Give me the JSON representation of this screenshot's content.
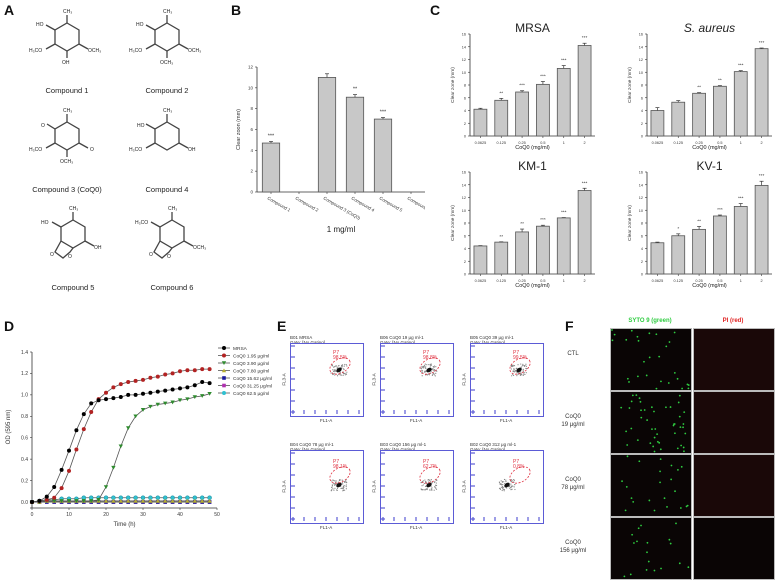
{
  "panels": {
    "A": {
      "label": "A"
    },
    "B": {
      "label": "B"
    },
    "C": {
      "label": "C"
    },
    "D": {
      "label": "D"
    },
    "E": {
      "label": "E"
    },
    "F": {
      "label": "F"
    }
  },
  "compounds": [
    {
      "name": "Compound 1",
      "groups": [
        "CH3",
        "HO",
        "H3CO",
        "OCH3",
        "OH"
      ]
    },
    {
      "name": "Compound 2",
      "groups": [
        "CH3",
        "HO",
        "H3CO",
        "OCH3",
        "OCH3"
      ]
    },
    {
      "name": "Compound 3 (CoQ0)",
      "groups": [
        "CH3",
        "O",
        "H3CO",
        "O",
        "OCH3"
      ]
    },
    {
      "name": "Compound 4",
      "groups": [
        "CH3",
        "HO",
        "H3CO",
        "OH"
      ]
    },
    {
      "name": "Compound 5",
      "groups": [
        "CH3",
        "HO",
        "OH",
        "O",
        "O"
      ]
    },
    {
      "name": "Compound 6",
      "groups": [
        "CH3",
        "H3CO",
        "OCH3",
        "O",
        "O"
      ]
    }
  ],
  "chart_data": [
    {
      "id": "B",
      "type": "bar",
      "title": "",
      "xlabel": "1 mg/ml",
      "ylabel": "Clear zoon (mm)",
      "ylim": [
        0,
        12
      ],
      "yticks": [
        0,
        2,
        4,
        6,
        8,
        10,
        12
      ],
      "categories": [
        "Compound 1",
        "Compound 2",
        "Compound 3 (CoQ0)",
        "Compound 4",
        "Compound 5",
        "Compound 6"
      ],
      "values": [
        4.7,
        0,
        11.0,
        9.1,
        7.0,
        0
      ],
      "errors": [
        0.15,
        0,
        0.35,
        0.25,
        0.15,
        0
      ],
      "annotations": [
        "***",
        "",
        "",
        "**",
        "***",
        ""
      ]
    },
    {
      "id": "C-MRSA",
      "type": "bar",
      "title": "MRSA",
      "xlabel": "CoQ0 (mg/ml)",
      "ylabel": "Clear zone (mm)",
      "ylim": [
        0,
        16
      ],
      "yticks": [
        0,
        2,
        4,
        6,
        8,
        10,
        12,
        14,
        16
      ],
      "categories": [
        "0.0625",
        "0.125",
        "0.25",
        "0.5",
        "1",
        "2"
      ],
      "values": [
        4.2,
        5.6,
        6.9,
        8.1,
        10.6,
        14.2
      ],
      "errors": [
        0.15,
        0.3,
        0.2,
        0.45,
        0.45,
        0.35
      ],
      "annotations": [
        "",
        "**",
        "***",
        "***",
        "***",
        "***"
      ]
    },
    {
      "id": "C-S.aureus",
      "type": "bar",
      "title": "S. aureus",
      "xlabel": "CoQ0 (mg/ml)",
      "ylabel": "Clear zone (mm)",
      "ylim": [
        0,
        16
      ],
      "yticks": [
        0,
        2,
        4,
        6,
        8,
        10,
        12,
        14,
        16
      ],
      "categories": [
        "0.0625",
        "0.125",
        "0.25",
        "0.5",
        "1",
        "2"
      ],
      "values": [
        4.0,
        5.3,
        6.7,
        7.8,
        10.1,
        13.7
      ],
      "errors": [
        0.45,
        0.25,
        0.1,
        0.1,
        0.15,
        0.1
      ],
      "annotations": [
        "",
        "",
        "**",
        "**",
        "***",
        "***"
      ]
    },
    {
      "id": "C-KM-1",
      "type": "bar",
      "title": "KM-1",
      "xlabel": "CoQ0 (mg/ml)",
      "ylabel": "Clear zone (mm)",
      "ylim": [
        0,
        16
      ],
      "yticks": [
        0,
        2,
        4,
        6,
        8,
        10,
        12,
        14,
        16
      ],
      "categories": [
        "0.0625",
        "0.125",
        "0.25",
        "0.5",
        "1",
        "2"
      ],
      "values": [
        4.4,
        5.0,
        6.6,
        7.5,
        8.8,
        13.1
      ],
      "errors": [
        0.05,
        0.05,
        0.45,
        0.15,
        0.05,
        0.35
      ],
      "annotations": [
        "",
        "**",
        "**",
        "***",
        "***",
        "***"
      ]
    },
    {
      "id": "C-KV-1",
      "type": "bar",
      "title": "KV-1",
      "xlabel": "CoQ0 (mg/ml)",
      "ylabel": "Clear zone (mm)",
      "ylim": [
        0,
        16
      ],
      "yticks": [
        0,
        2,
        4,
        6,
        8,
        10,
        12,
        14,
        16
      ],
      "categories": [
        "0.0625",
        "0.125",
        "0.25",
        "0.5",
        "1",
        "2"
      ],
      "values": [
        4.9,
        6.0,
        7.0,
        9.1,
        10.6,
        13.9
      ],
      "errors": [
        0.1,
        0.3,
        0.45,
        0.15,
        0.45,
        0.65
      ],
      "annotations": [
        "",
        "*",
        "**",
        "***",
        "***",
        "***"
      ]
    },
    {
      "id": "D",
      "type": "line",
      "title": "",
      "xlabel": "Time (h)",
      "ylabel": "OD (595 nm)",
      "xlim": [
        0,
        50
      ],
      "ylim": [
        0,
        1.4
      ],
      "xticks": [
        0,
        10,
        20,
        30,
        40,
        50
      ],
      "yticks": [
        0.0,
        0.2,
        0.4,
        0.6,
        0.8,
        1.0,
        1.2,
        1.4
      ],
      "legend_position": "upper-right-outside",
      "x": [
        0,
        2,
        4,
        6,
        8,
        10,
        12,
        14,
        16,
        18,
        20,
        22,
        24,
        26,
        28,
        30,
        32,
        34,
        36,
        38,
        40,
        42,
        44,
        46,
        48
      ],
      "series": [
        {
          "name": "MRSA",
          "color": "#000000",
          "marker": "circle",
          "values": [
            0,
            0.01,
            0.05,
            0.14,
            0.3,
            0.48,
            0.67,
            0.82,
            0.92,
            0.95,
            0.96,
            0.97,
            0.98,
            1.0,
            1.0,
            1.01,
            1.02,
            1.03,
            1.04,
            1.05,
            1.06,
            1.07,
            1.09,
            1.12,
            1.11
          ]
        },
        {
          "name": "CoQ0 1.95 μg/ml",
          "color": "#b22222",
          "marker": "circle",
          "values": [
            0,
            0.01,
            0.02,
            0.04,
            0.13,
            0.29,
            0.49,
            0.68,
            0.84,
            0.96,
            1.02,
            1.07,
            1.1,
            1.12,
            1.13,
            1.14,
            1.16,
            1.17,
            1.19,
            1.2,
            1.22,
            1.23,
            1.23,
            1.24,
            1.24
          ]
        },
        {
          "name": "CoQ0 3.90 μg/ml",
          "color": "#2e8b2e",
          "marker": "triangle-down",
          "values": [
            0,
            0,
            0.01,
            0.01,
            0.01,
            0.01,
            0.01,
            0.01,
            0.01,
            0.02,
            0.14,
            0.32,
            0.52,
            0.69,
            0.8,
            0.86,
            0.89,
            0.91,
            0.92,
            0.93,
            0.95,
            0.96,
            0.98,
            0.99,
            1.01
          ]
        },
        {
          "name": "CoQ0 7.80 μg/ml",
          "color": "#b8b030",
          "marker": "triangle-up",
          "values": [
            0,
            0,
            0.01,
            0.01,
            0.01,
            0.01,
            0.01,
            0.01,
            0.01,
            0.01,
            0.01,
            0.01,
            0.01,
            0.01,
            0.01,
            0.01,
            0.01,
            0.01,
            0.01,
            0.01,
            0.01,
            0.01,
            0.01,
            0.01,
            0.01
          ]
        },
        {
          "name": "CoQ0 15.62 μg/ml",
          "color": "#1a1a9e",
          "marker": "square",
          "values": [
            0,
            0,
            0,
            0,
            0,
            0,
            0,
            0,
            0,
            0,
            0,
            0,
            0,
            0,
            0,
            0,
            0,
            0,
            0,
            0,
            0,
            0,
            0,
            0,
            0
          ]
        },
        {
          "name": "CoQ0 31.25 μg/ml",
          "color": "#b030b0",
          "marker": "square",
          "values": [
            0,
            0,
            0,
            0,
            0,
            0,
            0,
            0,
            0,
            0,
            0,
            0,
            0,
            0,
            0,
            0,
            0,
            0,
            0,
            0,
            0,
            0,
            0,
            0,
            0
          ]
        },
        {
          "name": "CoQ0 62.5 μg/ml",
          "color": "#30c0d0",
          "marker": "hexagon",
          "values": [
            0,
            0.01,
            0.02,
            0.02,
            0.03,
            0.03,
            0.03,
            0.04,
            0.04,
            0.04,
            0.04,
            0.04,
            0.04,
            0.04,
            0.04,
            0.04,
            0.04,
            0.04,
            0.04,
            0.04,
            0.04,
            0.04,
            0.04,
            0.04,
            0.04
          ]
        }
      ]
    },
    {
      "id": "E",
      "type": "scatter",
      "xlabel": "FL1-A",
      "ylabel": "FL3-A",
      "gate_label": "Gate: [No Gating]",
      "gate_name": "P7",
      "plots": [
        {
          "title": "B01 MRSA",
          "percent": "98.5%"
        },
        {
          "title": "B06 CoQ0 19 μg ml-1",
          "percent": "98.8%"
        },
        {
          "title": "B05 CoQ0 39 μg ml-1",
          "percent": "99.5%"
        },
        {
          "title": "B04 CoQ0 78 μg ml-1",
          "percent": "98.1%"
        },
        {
          "title": "B03 CoQ0 156 μg ml-1",
          "percent": "62.7%"
        },
        {
          "title": "B02 CoQ0 312 μg ml-1",
          "percent": "0.8%"
        }
      ]
    }
  ],
  "microscopy": {
    "columns": [
      {
        "label": "SYTO 9 (green)",
        "color": "#2ecc40"
      },
      {
        "label": "PI (red)",
        "color": "#e02020"
      }
    ],
    "rows": [
      {
        "label": "CTL",
        "label2": ""
      },
      {
        "label": "CoQ0",
        "label2": "19 μg/ml"
      },
      {
        "label": "CoQ0",
        "label2": "78 μg/ml"
      },
      {
        "label": "CoQ0",
        "label2": "156 μg/ml"
      }
    ]
  }
}
